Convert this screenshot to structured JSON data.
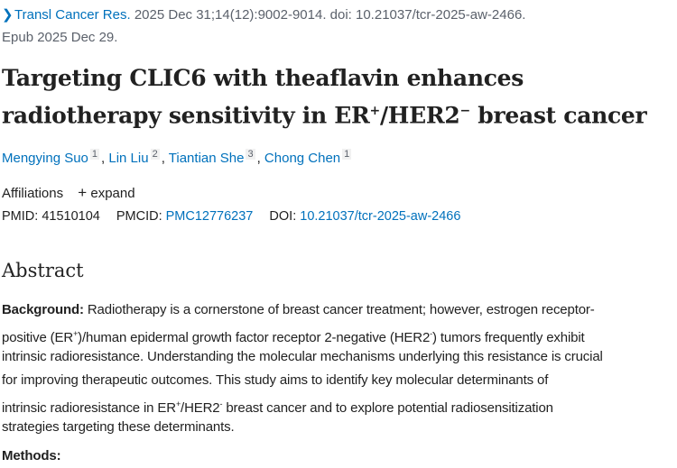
{
  "citation": {
    "journal": "Transl Cancer Res.",
    "details": " 2025 Dec 31;14(12):9002-9014. doi: 10.21037/tcr-2025-aw-2466.",
    "epub": "Epub 2025 Dec 29."
  },
  "title": {
    "line1": "Targeting CLIC6 with theaflavin enhances",
    "line2a": "radiotherapy sensitivity in ER",
    "sup1": "+",
    "line2b": "/HER2",
    "sup2": "−",
    "line2c": " breast cancer"
  },
  "authors": [
    {
      "name": "Mengying Suo",
      "aff": "1"
    },
    {
      "name": "Lin Liu",
      "aff": "2"
    },
    {
      "name": "Tiantian She",
      "aff": "3"
    },
    {
      "name": "Chong Chen",
      "aff": "1"
    }
  ],
  "affiliations": {
    "label": "Affiliations",
    "expand": "expand"
  },
  "ids": {
    "pmid_label": "PMID:",
    "pmid": "41510104",
    "pmcid_label": "PMCID:",
    "pmcid": "PMC12776237",
    "doi_label": "DOI:",
    "doi": "10.21037/tcr-2025-aw-2466"
  },
  "abstract": {
    "heading": "Abstract",
    "background_label": "Background:",
    "lines": [
      " Radiotherapy is a cornerstone of breast cancer treatment; however, estrogen receptor-",
      "positive (ER",
      "+",
      ")/human epidermal growth factor receptor 2-negative (HER2",
      "-",
      ") tumors frequently exhibit",
      "intrinsic radioresistance. Understanding the molecular mechanisms underlying this resistance is crucial",
      "for improving therapeutic outcomes. This study aims to identify key molecular determinants of",
      "intrinsic radioresistance in ER",
      "+",
      "/HER2",
      "-",
      " breast cancer and to explore potential radiosensitization",
      "strategies targeting these determinants."
    ],
    "methods_label": "Methods:"
  },
  "colors": {
    "link": "#0071bc",
    "muted": "#5b616b",
    "text": "#212121"
  }
}
